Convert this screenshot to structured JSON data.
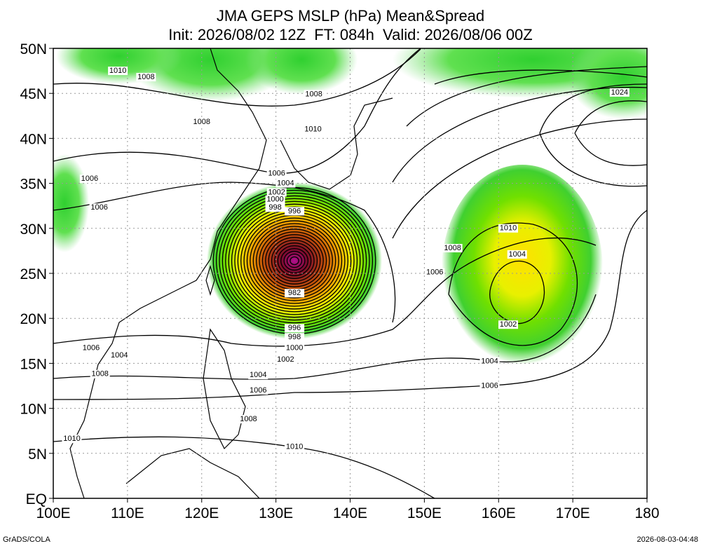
{
  "header": {
    "title": "JMA GEPS MSLP (hPa) Mean&Spread",
    "subtitle": "Init: 2026/08/02 12Z  FT: 084h  Valid: 2026/08/06 00Z"
  },
  "map": {
    "lonlim": [
      100,
      180
    ],
    "latlim": [
      0,
      50
    ],
    "lonticks": [
      {
        "value": 100,
        "label": "100E"
      },
      {
        "value": 110,
        "label": "110E"
      },
      {
        "value": 120,
        "label": "120E"
      },
      {
        "value": 130,
        "label": "130E"
      },
      {
        "value": 140,
        "label": "140E"
      },
      {
        "value": 150,
        "label": "150E"
      },
      {
        "value": 160,
        "label": "160E"
      },
      {
        "value": 170,
        "label": "170E"
      },
      {
        "value": 180,
        "label": "180"
      }
    ],
    "latticks": [
      {
        "value": 0,
        "label": "EQ"
      },
      {
        "value": 5,
        "label": "5N"
      },
      {
        "value": 10,
        "label": "10N"
      },
      {
        "value": 15,
        "label": "15N"
      },
      {
        "value": 20,
        "label": "20N"
      },
      {
        "value": 25,
        "label": "25N"
      },
      {
        "value": 30,
        "label": "30N"
      },
      {
        "value": 35,
        "label": "35N"
      },
      {
        "value": 40,
        "label": "40N"
      },
      {
        "value": 45,
        "label": "45N"
      },
      {
        "value": 50,
        "label": "50N"
      }
    ],
    "contour_labels": [
      {
        "value": 1010,
        "lon": 108.7,
        "lat": 47.5
      },
      {
        "value": 1008,
        "lon": 112.5,
        "lat": 46.8
      },
      {
        "value": 1008,
        "lon": 120.0,
        "lat": 41.8
      },
      {
        "value": 1008,
        "lon": 135.1,
        "lat": 44.9
      },
      {
        "value": 1010,
        "lon": 135.0,
        "lat": 41.0
      },
      {
        "value": 1006,
        "lon": 104.9,
        "lat": 35.5
      },
      {
        "value": 1006,
        "lon": 106.2,
        "lat": 32.3
      },
      {
        "value": 1006,
        "lon": 130.1,
        "lat": 36.1
      },
      {
        "value": 1004,
        "lon": 131.3,
        "lat": 35.0
      },
      {
        "value": 1002,
        "lon": 130.1,
        "lat": 34.0
      },
      {
        "value": 1000,
        "lon": 129.9,
        "lat": 33.2
      },
      {
        "value": 998,
        "lon": 129.9,
        "lat": 32.3
      },
      {
        "value": 996,
        "lon": 132.5,
        "lat": 31.9
      },
      {
        "value": 1024,
        "lon": 176.3,
        "lat": 45.1
      },
      {
        "value": 1010,
        "lon": 161.3,
        "lat": 30.0
      },
      {
        "value": 1008,
        "lon": 153.8,
        "lat": 27.8
      },
      {
        "value": 1004,
        "lon": 162.5,
        "lat": 27.1
      },
      {
        "value": 1006,
        "lon": 151.4,
        "lat": 25.1
      },
      {
        "value": 1002,
        "lon": 161.3,
        "lat": 19.3
      },
      {
        "value": 982,
        "lon": 132.5,
        "lat": 22.8
      },
      {
        "value": 996,
        "lon": 132.5,
        "lat": 18.9
      },
      {
        "value": 998,
        "lon": 132.5,
        "lat": 17.9
      },
      {
        "value": 1000,
        "lon": 132.5,
        "lat": 16.7
      },
      {
        "value": 1002,
        "lon": 131.3,
        "lat": 15.4
      },
      {
        "value": 1004,
        "lon": 127.6,
        "lat": 13.7
      },
      {
        "value": 1006,
        "lon": 127.6,
        "lat": 12.0
      },
      {
        "value": 1008,
        "lon": 126.3,
        "lat": 8.8
      },
      {
        "value": 1010,
        "lon": 132.5,
        "lat": 5.7
      },
      {
        "value": 1006,
        "lon": 105.1,
        "lat": 16.7
      },
      {
        "value": 1004,
        "lon": 108.9,
        "lat": 15.9
      },
      {
        "value": 1008,
        "lon": 106.3,
        "lat": 13.8
      },
      {
        "value": 1010,
        "lon": 102.5,
        "lat": 6.6
      },
      {
        "value": 1004,
        "lon": 158.8,
        "lat": 15.2
      },
      {
        "value": 1006,
        "lon": 158.8,
        "lat": 12.5
      }
    ]
  },
  "footer": {
    "left": "GrADS/COLA",
    "right": "2026-08-03-04:48"
  }
}
